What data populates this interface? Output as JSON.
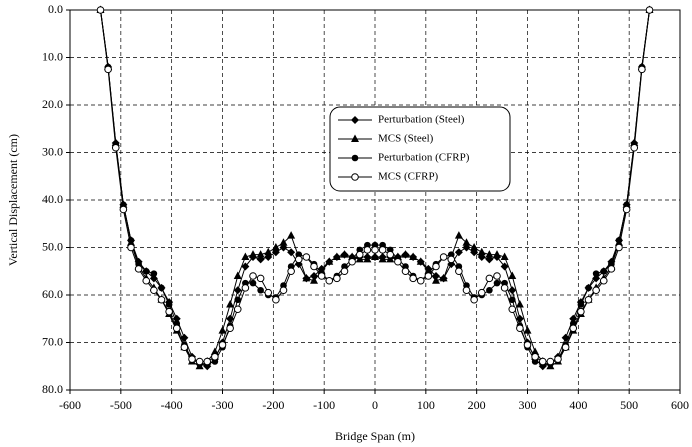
{
  "chart_data": {
    "type": "line",
    "xlabel": "Bridge Span (m)",
    "ylabel": "Vertical Displacement (cm)",
    "xlim": [
      -600,
      600
    ],
    "xticks": [
      -600,
      -500,
      -400,
      -300,
      -200,
      -100,
      0,
      100,
      200,
      300,
      400,
      500,
      600
    ],
    "ylim": [
      0,
      80
    ],
    "y_inverted": true,
    "yticks": [
      {
        "value": 0,
        "label": "0.0"
      },
      {
        "value": 10,
        "label": "10.0"
      },
      {
        "value": 20,
        "label": "20.0"
      },
      {
        "value": 30,
        "label": "30.0"
      },
      {
        "value": 40,
        "label": "40.0"
      },
      {
        "value": 50,
        "label": "50.0"
      },
      {
        "value": 60,
        "label": "60.0"
      },
      {
        "value": 70,
        "label": "70.0"
      },
      {
        "value": 80,
        "label": "80.0"
      }
    ],
    "grid": true,
    "x": [
      -540,
      -525,
      -510,
      -495,
      -480,
      -465,
      -450,
      -435,
      -420,
      -405,
      -390,
      -375,
      -360,
      -345,
      -330,
      -315,
      -300,
      -285,
      -270,
      -255,
      -240,
      -225,
      -210,
      -195,
      -180,
      -165,
      -150,
      -135,
      -120,
      -105,
      -90,
      -75,
      -60,
      -45,
      -30,
      -15,
      0,
      15,
      30,
      45,
      60,
      75,
      90,
      105,
      120,
      135,
      150,
      165,
      180,
      195,
      210,
      225,
      240,
      255,
      270,
      285,
      300,
      315,
      330,
      345,
      360,
      375,
      390,
      405,
      420,
      435,
      450,
      465,
      480,
      495,
      510,
      525,
      540
    ],
    "series": [
      {
        "name": "Perturbation (Steel)",
        "color": "#000000",
        "marker": "diamond",
        "values": [
          0,
          12,
          28,
          41,
          48.5,
          53,
          55,
          56.5,
          58.5,
          61.5,
          65,
          69,
          73,
          74.5,
          75,
          73.5,
          70,
          65,
          59,
          54,
          52,
          52.5,
          52,
          51,
          50,
          51,
          53.5,
          56.5,
          56,
          54.5,
          53,
          52,
          51.5,
          52,
          52,
          52,
          52,
          52,
          52,
          52,
          51.5,
          52,
          53,
          54.5,
          56,
          56.5,
          53.5,
          51,
          50,
          51,
          52,
          52.5,
          52,
          54,
          59,
          65,
          70,
          73.5,
          75,
          74.5,
          73,
          69,
          65,
          61.5,
          58.5,
          56.5,
          55,
          53,
          48.5,
          41,
          28,
          12,
          0
        ]
      },
      {
        "name": "MCS (Steel)",
        "color": "#000000",
        "marker": "triangle",
        "values": [
          0,
          12,
          28,
          41,
          49,
          54,
          56.5,
          58.5,
          61,
          64,
          67.5,
          71,
          74,
          75,
          74,
          72,
          67.5,
          62,
          56,
          52,
          51.5,
          51.5,
          51,
          50,
          49,
          47.5,
          52,
          56.5,
          57,
          55,
          53,
          52,
          51.5,
          52,
          52.5,
          52.5,
          52,
          52.5,
          52.5,
          52,
          51.5,
          52,
          53,
          55,
          57,
          56.5,
          52,
          47.5,
          49,
          50,
          51,
          51.5,
          51.5,
          52,
          56,
          62,
          67.5,
          72,
          74,
          75,
          74,
          71,
          67.5,
          64,
          61,
          58.5,
          56.5,
          54,
          49,
          41,
          28,
          12,
          0
        ]
      },
      {
        "name": "Perturbation (CFRP)",
        "color": "#000000",
        "marker": "circle",
        "values": [
          0,
          12,
          28.5,
          41,
          48.5,
          53.5,
          55,
          55.5,
          58.5,
          62,
          66,
          70.5,
          73.5,
          74.5,
          74.5,
          74,
          71,
          66.5,
          61,
          57.5,
          57.5,
          59,
          60,
          60.5,
          58,
          54,
          51.5,
          52,
          53.5,
          55.5,
          57,
          56,
          54,
          52.5,
          50.5,
          49.5,
          49.5,
          49.5,
          50.5,
          52.5,
          54,
          56,
          57,
          55.5,
          53.5,
          52,
          51.5,
          54,
          58,
          60.5,
          60,
          59,
          57.5,
          57.5,
          61,
          66.5,
          71,
          74,
          74.5,
          74.5,
          73.5,
          70.5,
          66,
          62,
          58.5,
          55.5,
          55,
          53.5,
          48.5,
          41,
          28.5,
          12,
          0
        ]
      },
      {
        "name": "MCS (CFRP)",
        "color": "#000000",
        "marker": "open-circle",
        "values": [
          0,
          12.5,
          29,
          42,
          50,
          54.5,
          57,
          59,
          61,
          63.5,
          67,
          71,
          73.5,
          74,
          74,
          73,
          70.5,
          67,
          63,
          58.5,
          56,
          56.5,
          59.5,
          61,
          59,
          55,
          52.5,
          52,
          54,
          56,
          57,
          56.5,
          55,
          53,
          51.5,
          50.5,
          50.5,
          50.5,
          51.5,
          53,
          55,
          56.5,
          57,
          56,
          54,
          52,
          52.5,
          55,
          59,
          61,
          59.5,
          56.5,
          56,
          58.5,
          63,
          67,
          70.5,
          73,
          74,
          74,
          73.5,
          71,
          67,
          63.5,
          61,
          59,
          57,
          54.5,
          50,
          42,
          29,
          12.5,
          0
        ]
      }
    ]
  }
}
